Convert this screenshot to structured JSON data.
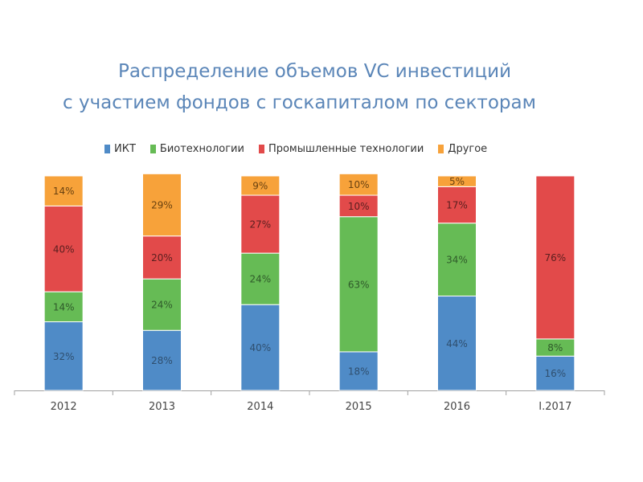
{
  "chart_data": {
    "type": "bar",
    "stacked": true,
    "title": "Распределение объемов VC инвестиций с участием фондов с госкапиталом по секторам",
    "title_lines": [
      "Распределение объемов VC инвестиций",
      "с участием фондов с госкапиталом по секторам"
    ],
    "xlabel": "",
    "ylabel": "",
    "categories": [
      "2012",
      "2013",
      "2014",
      "2015",
      "2016",
      "I.2017"
    ],
    "series": [
      {
        "name": "ИКТ",
        "color": "#4f8bc7",
        "values": [
          32,
          28,
          40,
          18,
          44,
          16
        ]
      },
      {
        "name": "Биотехнологии",
        "color": "#66bb55",
        "values": [
          14,
          24,
          24,
          63,
          34,
          8
        ]
      },
      {
        "name": "Промышленные технологии",
        "color": "#e24a4a",
        "values": [
          40,
          20,
          27,
          10,
          17,
          76
        ]
      },
      {
        "name": "Другое",
        "color": "#f7a23a",
        "values": [
          14,
          29,
          9,
          10,
          5,
          0
        ]
      }
    ],
    "value_suffix": "%",
    "ylim": [
      0,
      100
    ],
    "grid": false,
    "legend_position": "top"
  }
}
